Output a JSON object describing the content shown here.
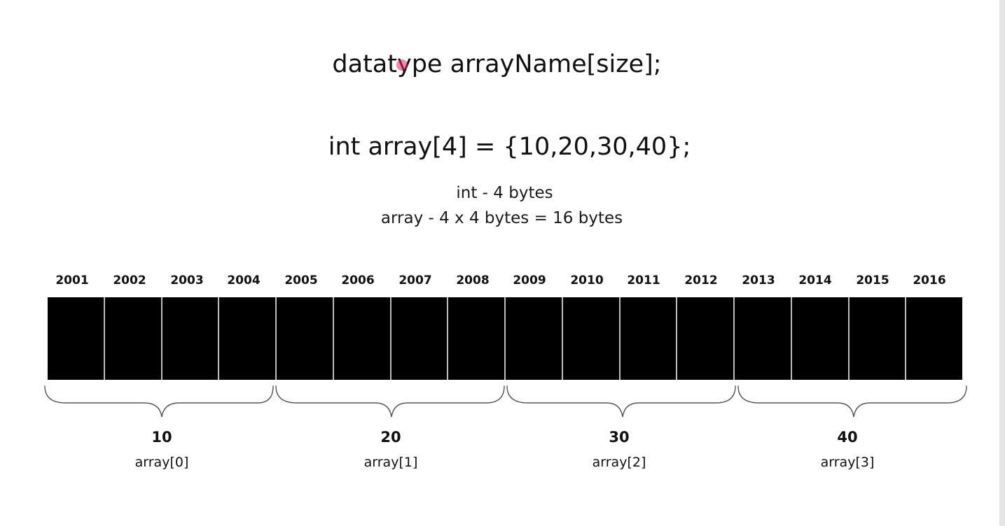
{
  "syntax": "datatype arrayName[size];",
  "declaration": "int array[4] = {10,20,30,40};",
  "notes": {
    "int_size": "int - 4 bytes",
    "array_size": "array - 4 x 4 bytes = 16 bytes"
  },
  "addresses": [
    "2001",
    "2002",
    "2003",
    "2004",
    "2005",
    "2006",
    "2007",
    "2008",
    "2009",
    "2010",
    "2011",
    "2012",
    "2013",
    "2014",
    "2015",
    "2016"
  ],
  "elements": [
    {
      "value": "10",
      "name": "array[0]"
    },
    {
      "value": "20",
      "name": "array[1]"
    },
    {
      "value": "30",
      "name": "array[2]"
    },
    {
      "value": "40",
      "name": "array[3]"
    }
  ],
  "colors": {
    "cell_fill": "#000000",
    "cursor_marker": "#e1286e"
  }
}
